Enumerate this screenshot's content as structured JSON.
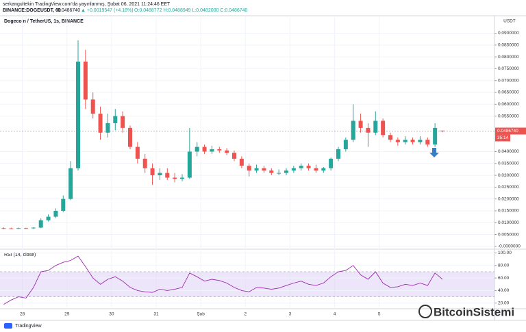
{
  "header": {
    "author_line": "serkangultekin TradingView.com'da yayınlanmış, Şubat 06, 2021 11:24:46 EET",
    "symbol": "BINANCE:DOGEUSDT, 60",
    "last": "0.0486740",
    "change": "▲ +0.0019547 (+4.18%)",
    "ohlc": "O:0.0488772 H:0.0488949 L:0.0482000 C:0.0486740"
  },
  "footer": {
    "brand": "TradingView",
    "watermark": "BitcoinSistemi"
  },
  "chart_data": [
    {
      "type": "candlestick",
      "title": "Dogecoin / TetherUS, 1s, BINANCE",
      "axis_unit": "USDT",
      "up_color": "#26a69a",
      "down_color": "#ef5350",
      "grid": true,
      "x": [
        -10,
        -6,
        -2,
        2,
        6,
        10,
        14,
        18,
        22,
        26,
        30,
        34,
        38,
        42,
        46,
        50,
        54,
        58,
        62,
        66,
        70,
        74,
        78,
        82,
        86,
        90,
        94,
        98,
        102,
        106,
        110,
        114,
        118,
        122,
        126,
        130,
        134,
        138,
        142,
        146,
        150,
        154,
        158,
        162,
        166,
        170,
        174,
        178,
        182,
        186,
        190,
        194,
        198,
        202,
        206,
        210,
        214,
        218,
        222,
        226
      ],
      "open": [
        0.0077,
        0.0076,
        0.0075,
        0.0077,
        0.0076,
        0.0079,
        0.011,
        0.0125,
        0.015,
        0.02,
        0.033,
        0.078,
        0.062,
        0.056,
        0.048,
        0.052,
        0.055,
        0.05,
        0.042,
        0.037,
        0.033,
        0.03,
        0.031,
        0.029,
        0.0285,
        0.029,
        0.04,
        0.042,
        0.04,
        0.041,
        0.0405,
        0.0395,
        0.037,
        0.034,
        0.032,
        0.033,
        0.032,
        0.031,
        0.031,
        0.032,
        0.033,
        0.034,
        0.033,
        0.032,
        0.033,
        0.037,
        0.041,
        0.045,
        0.053,
        0.05,
        0.048,
        0.053,
        0.047,
        0.045,
        0.044,
        0.045,
        0.044,
        0.045,
        0.043,
        0.0488772
      ],
      "high": [
        0.008,
        0.0079,
        0.0079,
        0.0079,
        0.0081,
        0.0118,
        0.0135,
        0.016,
        0.0215,
        0.036,
        0.087,
        0.083,
        0.065,
        0.059,
        0.056,
        0.058,
        0.057,
        0.051,
        0.044,
        0.039,
        0.035,
        0.033,
        0.033,
        0.031,
        0.0305,
        0.05,
        0.044,
        0.043,
        0.0425,
        0.042,
        0.0415,
        0.0405,
        0.038,
        0.035,
        0.0345,
        0.034,
        0.033,
        0.0325,
        0.033,
        0.034,
        0.035,
        0.035,
        0.0345,
        0.0335,
        0.0375,
        0.042,
        0.046,
        0.06,
        0.056,
        0.052,
        0.057,
        0.054,
        0.048,
        0.046,
        0.0465,
        0.046,
        0.0465,
        0.046,
        0.052,
        0.0488949
      ],
      "low": [
        0.0073,
        0.0073,
        0.0073,
        0.0074,
        0.0074,
        0.0077,
        0.0105,
        0.012,
        0.0145,
        0.0195,
        0.032,
        0.058,
        0.054,
        0.045,
        0.046,
        0.049,
        0.048,
        0.041,
        0.035,
        0.031,
        0.026,
        0.028,
        0.028,
        0.027,
        0.0275,
        0.0285,
        0.038,
        0.039,
        0.039,
        0.0395,
        0.0385,
        0.036,
        0.033,
        0.0295,
        0.031,
        0.031,
        0.03,
        0.03,
        0.03,
        0.031,
        0.032,
        0.032,
        0.031,
        0.031,
        0.032,
        0.036,
        0.04,
        0.044,
        0.048,
        0.042,
        0.047,
        0.046,
        0.044,
        0.0425,
        0.043,
        0.043,
        0.043,
        0.042,
        0.042,
        0.0482
      ],
      "close": [
        0.0076,
        0.0075,
        0.0077,
        0.0076,
        0.0079,
        0.011,
        0.0125,
        0.015,
        0.02,
        0.033,
        0.078,
        0.062,
        0.056,
        0.048,
        0.052,
        0.055,
        0.05,
        0.042,
        0.037,
        0.033,
        0.03,
        0.031,
        0.029,
        0.0285,
        0.029,
        0.04,
        0.042,
        0.04,
        0.041,
        0.0405,
        0.0395,
        0.037,
        0.034,
        0.032,
        0.033,
        0.032,
        0.031,
        0.031,
        0.032,
        0.033,
        0.034,
        0.033,
        0.032,
        0.033,
        0.037,
        0.041,
        0.045,
        0.053,
        0.05,
        0.048,
        0.053,
        0.047,
        0.045,
        0.044,
        0.045,
        0.044,
        0.045,
        0.043,
        0.05,
        0.048674
      ],
      "xlim": [
        -12,
        254
      ],
      "xticks": [
        {
          "value": 0,
          "label": "28"
        },
        {
          "value": 24,
          "label": "29"
        },
        {
          "value": 48,
          "label": "30"
        },
        {
          "value": 72,
          "label": "31"
        },
        {
          "value": 96,
          "label": "Şub"
        },
        {
          "value": 120,
          "label": "2"
        },
        {
          "value": 144,
          "label": "3"
        },
        {
          "value": 168,
          "label": "4"
        },
        {
          "value": 192,
          "label": "5"
        }
      ],
      "ylim": [
        -0.0012,
        0.0968
      ],
      "yticks": [
        {
          "value": 0.09,
          "label": "0.0900000"
        },
        {
          "value": 0.085,
          "label": "0.0850000"
        },
        {
          "value": 0.08,
          "label": "0.0800000"
        },
        {
          "value": 0.075,
          "label": "0.0750000"
        },
        {
          "value": 0.07,
          "label": "0.0700000"
        },
        {
          "value": 0.065,
          "label": "0.0650000"
        },
        {
          "value": 0.06,
          "label": "0.0600000"
        },
        {
          "value": 0.055,
          "label": "0.0550000"
        },
        {
          "value": 0.04,
          "label": "0.0400000"
        },
        {
          "value": 0.035,
          "label": "0.0350000"
        },
        {
          "value": 0.03,
          "label": "0.0300000"
        },
        {
          "value": 0.025,
          "label": "0.0250000"
        },
        {
          "value": 0.02,
          "label": "0.0200000"
        },
        {
          "value": 0.015,
          "label": "0.0150000"
        },
        {
          "value": 0.01,
          "label": "0.0100000"
        },
        {
          "value": 0.005,
          "label": "0.0050000"
        },
        {
          "value": 0,
          "label": "-0.0000000"
        }
      ],
      "current_price": {
        "value": 0.048674,
        "label": "0.0486740"
      },
      "countdown": "35:14"
    },
    {
      "type": "line",
      "title": "RSI (14, close)",
      "color": "#9c27b0",
      "band": [
        30,
        70
      ],
      "band_color": "#e1d4f5",
      "x": [
        -10,
        -6,
        -2,
        2,
        6,
        10,
        14,
        18,
        22,
        26,
        30,
        34,
        38,
        42,
        46,
        50,
        54,
        58,
        62,
        66,
        70,
        74,
        78,
        82,
        86,
        90,
        94,
        98,
        102,
        106,
        110,
        114,
        118,
        122,
        126,
        130,
        134,
        138,
        142,
        146,
        150,
        154,
        158,
        162,
        166,
        170,
        174,
        178,
        182,
        186,
        190,
        194,
        198,
        202,
        206,
        210,
        214,
        218,
        222,
        226
      ],
      "values": [
        18,
        25,
        30,
        28,
        45,
        70,
        72,
        80,
        85,
        88,
        95,
        78,
        60,
        50,
        58,
        62,
        55,
        45,
        40,
        38,
        37,
        42,
        40,
        42,
        45,
        68,
        62,
        55,
        58,
        56,
        52,
        45,
        40,
        38,
        45,
        44,
        42,
        44,
        48,
        52,
        55,
        50,
        48,
        52,
        62,
        70,
        72,
        80,
        65,
        58,
        70,
        52,
        45,
        46,
        50,
        48,
        52,
        48,
        68,
        58
      ],
      "xlim": [
        -12,
        254
      ],
      "ylim": [
        11,
        106
      ],
      "yticks": [
        {
          "value": 100,
          "label": "100.00"
        },
        {
          "value": 80,
          "label": "80.00"
        },
        {
          "value": 60,
          "label": "60.00"
        },
        {
          "value": 40,
          "label": "40.00"
        },
        {
          "value": 20,
          "label": "20.00"
        }
      ]
    }
  ]
}
